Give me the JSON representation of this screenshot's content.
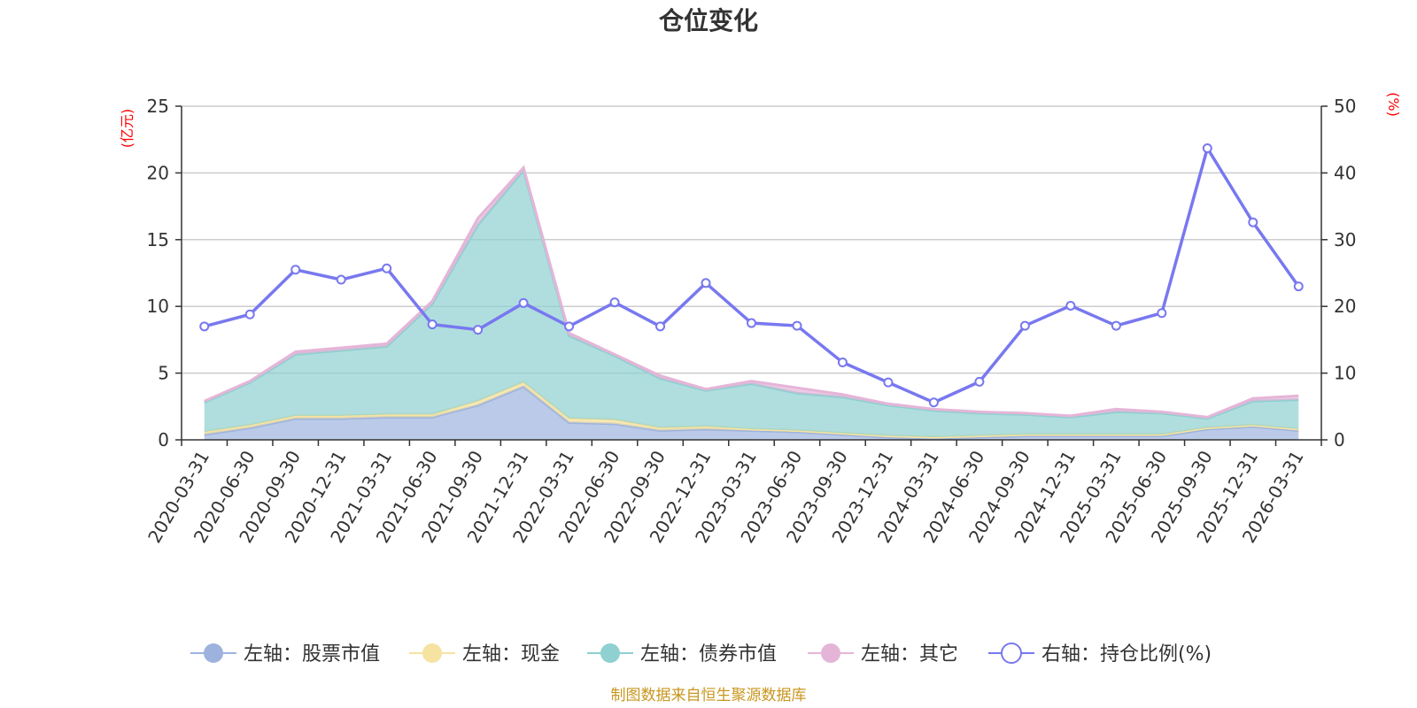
{
  "chart_data": {
    "type": "area",
    "title": "仓位变化",
    "categories": [
      "2020-03-31",
      "2020-06-30",
      "2020-09-30",
      "2020-12-31",
      "2021-03-31",
      "2021-06-30",
      "2021-09-30",
      "2021-12-31",
      "2022-03-31",
      "2022-06-30",
      "2022-09-30",
      "2022-12-31",
      "2023-03-31",
      "2023-06-30",
      "2023-09-30",
      "2023-12-31",
      "2024-03-31",
      "2024-06-30",
      "2024-09-30",
      "2024-12-31",
      "2025-03-31",
      "2025-06-30",
      "2025-09-30",
      "2025-12-31",
      "2026-03-31"
    ],
    "left_axis": {
      "unit": "(亿元)",
      "ylim": [
        0,
        25
      ],
      "ticks": [
        "0",
        "5",
        "10",
        "15",
        "20",
        "25"
      ]
    },
    "right_axis": {
      "unit": "(%)",
      "ylim": [
        0,
        50
      ],
      "ticks": [
        "0",
        "10",
        "20",
        "30",
        "40",
        "50"
      ]
    },
    "series": [
      {
        "name": "左轴：股票市值",
        "axis": "left",
        "stack": true,
        "color": "#9db3de",
        "values": [
          0.4,
          0.9,
          1.6,
          1.6,
          1.7,
          1.7,
          2.6,
          4.0,
          1.3,
          1.2,
          0.7,
          0.8,
          0.7,
          0.6,
          0.4,
          0.2,
          0.1,
          0.2,
          0.3,
          0.3,
          0.3,
          0.3,
          0.8,
          1.0,
          0.7
        ]
      },
      {
        "name": "左轴：现金",
        "axis": "left",
        "stack": true,
        "color": "#f6e3a1",
        "values": [
          0.2,
          0.2,
          0.2,
          0.2,
          0.2,
          0.2,
          0.3,
          0.3,
          0.3,
          0.3,
          0.2,
          0.2,
          0.1,
          0.1,
          0.1,
          0.1,
          0.1,
          0.1,
          0.1,
          0.1,
          0.1,
          0.1,
          0.1,
          0.1,
          0.1
        ]
      },
      {
        "name": "左轴：债券市值",
        "axis": "left",
        "stack": true,
        "color": "#8fd0d0",
        "values": [
          2.2,
          3.2,
          4.6,
          4.9,
          5.1,
          8.3,
          13.2,
          15.9,
          6.2,
          4.8,
          3.7,
          2.7,
          3.4,
          2.8,
          2.7,
          2.3,
          2.0,
          1.7,
          1.5,
          1.3,
          1.7,
          1.6,
          0.7,
          1.8,
          2.2
        ]
      },
      {
        "name": "左轴：其它",
        "axis": "left",
        "stack": true,
        "color": "#e5b5d8",
        "values": [
          0.1,
          0.1,
          0.2,
          0.2,
          0.2,
          0.2,
          0.5,
          0.2,
          0.2,
          0.1,
          0.2,
          0.1,
          0.2,
          0.4,
          0.2,
          0.1,
          0.1,
          0.1,
          0.1,
          0.1,
          0.2,
          0.1,
          0.1,
          0.2,
          0.3
        ]
      },
      {
        "name": "右轴：持仓比例(%)",
        "axis": "right",
        "stack": false,
        "color": "#7878f0",
        "values": [
          17.0,
          18.8,
          25.5,
          24.0,
          25.7,
          17.3,
          16.5,
          20.5,
          17.0,
          20.6,
          17.0,
          23.5,
          17.5,
          17.1,
          11.6,
          8.6,
          5.6,
          8.7,
          17.1,
          20.1,
          17.1,
          19.0,
          43.7,
          32.6,
          23.0
        ]
      }
    ],
    "source": "制图数据来自恒生聚源数据库"
  }
}
